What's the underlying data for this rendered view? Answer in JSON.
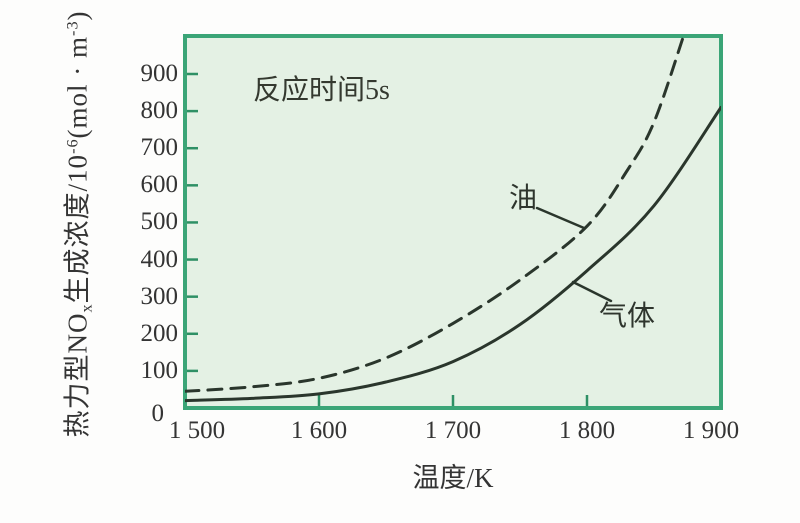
{
  "page": {
    "background": "#fdfdfc"
  },
  "chart": {
    "annotation": "反应时间5s",
    "x_axis": {
      "title": "温度/K",
      "tick_labels": [
        "1 500",
        "1 600",
        "1 700",
        "1 800",
        "1 900"
      ]
    },
    "y_axis": {
      "title_parts": {
        "p1": "热力型NO",
        "sub1": "x",
        "p2": "生成浓度/10",
        "sup1": "-6",
        "p3": "(mol · m",
        "sup2": "-3",
        "p4": ")"
      },
      "tick_labels": [
        "0",
        "100",
        "200",
        "300",
        "400",
        "500",
        "600",
        "700",
        "800",
        "900"
      ]
    },
    "labels": {
      "oil": "油",
      "gas": "气体"
    },
    "colors": {
      "plot_bg": "#e4f1e4",
      "border": "#3ba577",
      "tick": "#2e9065",
      "curve": "#2a362c",
      "text": "#343434"
    }
  },
  "chart_data": {
    "type": "line",
    "title": "",
    "annotation": "反应时间5s",
    "xlabel": "温度/K",
    "ylabel": "热力型NOx生成浓度/10^-6 (mol·m^-3)",
    "xlim": [
      1500,
      1900
    ],
    "ylim": [
      0,
      1000
    ],
    "x_ticks": [
      1500,
      1600,
      1700,
      1800,
      1900
    ],
    "y_ticks": [
      0,
      100,
      200,
      300,
      400,
      500,
      600,
      700,
      800,
      900
    ],
    "grid": false,
    "legend_position": "inline-labels",
    "series": [
      {
        "name": "油",
        "style": "dashed",
        "points": [
          [
            1500,
            45
          ],
          [
            1550,
            57
          ],
          [
            1600,
            80
          ],
          [
            1650,
            135
          ],
          [
            1700,
            228
          ],
          [
            1750,
            345
          ],
          [
            1800,
            490
          ],
          [
            1830,
            640
          ],
          [
            1850,
            770
          ],
          [
            1872,
            1002
          ]
        ]
      },
      {
        "name": "气体",
        "style": "solid",
        "points": [
          [
            1500,
            20
          ],
          [
            1550,
            26
          ],
          [
            1600,
            38
          ],
          [
            1650,
            70
          ],
          [
            1700,
            125
          ],
          [
            1750,
            225
          ],
          [
            1800,
            370
          ],
          [
            1850,
            545
          ],
          [
            1900,
            810
          ]
        ]
      }
    ]
  }
}
